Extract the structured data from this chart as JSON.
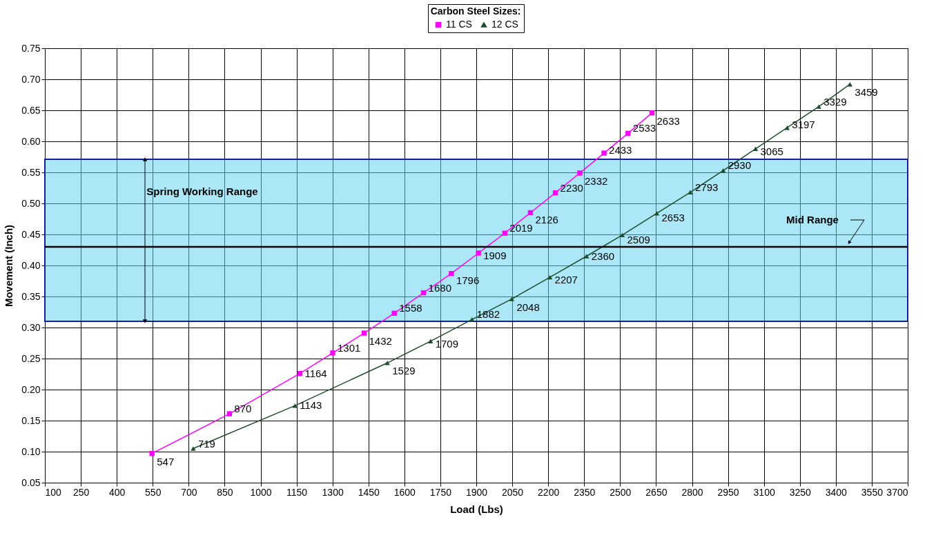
{
  "chart_data": {
    "type": "line",
    "legend_title": "Carbon Steel Sizes:",
    "xlabel": "Load (Lbs)",
    "ylabel": "Movement (Inch)",
    "xlim": [
      100,
      3700
    ],
    "xticks": [
      100,
      250,
      400,
      550,
      700,
      850,
      1000,
      1150,
      1300,
      1450,
      1600,
      1750,
      1900,
      2050,
      2200,
      2350,
      2500,
      2650,
      2800,
      2950,
      3100,
      3250,
      3400,
      3550,
      3700
    ],
    "ylim": [
      0.05,
      0.75
    ],
    "yticks": [
      {
        "value": 0.05,
        "label": "0.05"
      },
      {
        "value": 0.1,
        "label": "0.10"
      },
      {
        "value": 0.15,
        "label": "0.15"
      },
      {
        "value": 0.2,
        "label": "0.20"
      },
      {
        "value": 0.25,
        "label": "0.25"
      },
      {
        "value": 0.3,
        "label": "0.30"
      },
      {
        "value": 0.35,
        "label": "0.35"
      },
      {
        "value": 0.4,
        "label": "0.40"
      },
      {
        "value": 0.45,
        "label": "0.45"
      },
      {
        "value": 0.5,
        "label": "0.50"
      },
      {
        "value": 0.55,
        "label": "0.55"
      },
      {
        "value": 0.6,
        "label": "0.60"
      },
      {
        "value": 0.65,
        "label": "0.65"
      },
      {
        "value": 0.7,
        "label": "0.70"
      },
      {
        "value": 0.75,
        "label": "0.75"
      }
    ],
    "grid": true,
    "legend": "top",
    "series": [
      {
        "name": "11 CS",
        "color": "#ff00ff",
        "marker": "square",
        "x": [
          547,
          870,
          1164,
          1301,
          1432,
          1558,
          1680,
          1796,
          1909,
          2019,
          2126,
          2230,
          2332,
          2433,
          2533,
          2633
        ],
        "values": [
          0.097,
          0.161,
          0.226,
          0.259,
          0.291,
          0.323,
          0.356,
          0.387,
          0.42,
          0.452,
          0.485,
          0.517,
          0.549,
          0.581,
          0.613,
          0.646
        ]
      },
      {
        "name": "12 CS",
        "color": "#1e4d2b",
        "marker": "triangle",
        "x": [
          719,
          1143,
          1529,
          1709,
          1882,
          2048,
          2207,
          2360,
          2509,
          2653,
          2793,
          2930,
          3065,
          3197,
          3329,
          3459
        ],
        "values": [
          0.105,
          0.174,
          0.243,
          0.278,
          0.313,
          0.346,
          0.381,
          0.415,
          0.449,
          0.484,
          0.518,
          0.553,
          0.588,
          0.622,
          0.656,
          0.692
        ]
      }
    ],
    "annotations": [
      {
        "text": "547",
        "x": 547,
        "y": 0.097
      },
      {
        "text": "870",
        "x": 870,
        "y": 0.161
      },
      {
        "text": "1164",
        "x": 1164,
        "y": 0.226
      },
      {
        "text": "1301",
        "x": 1301,
        "y": 0.259
      },
      {
        "text": "1432",
        "x": 1432,
        "y": 0.291
      },
      {
        "text": "1558",
        "x": 1558,
        "y": 0.323
      },
      {
        "text": "1680",
        "x": 1680,
        "y": 0.356
      },
      {
        "text": "1796",
        "x": 1796,
        "y": 0.387
      },
      {
        "text": "1909",
        "x": 1909,
        "y": 0.42
      },
      {
        "text": "2019",
        "x": 2019,
        "y": 0.452
      },
      {
        "text": "2126",
        "x": 2126,
        "y": 0.485
      },
      {
        "text": "2230",
        "x": 2230,
        "y": 0.517
      },
      {
        "text": "2332",
        "x": 2332,
        "y": 0.549
      },
      {
        "text": "2433",
        "x": 2433,
        "y": 0.581
      },
      {
        "text": "2533",
        "x": 2533,
        "y": 0.613
      },
      {
        "text": "2633",
        "x": 2633,
        "y": 0.646
      },
      {
        "text": "719",
        "x": 719,
        "y": 0.105
      },
      {
        "text": "1143",
        "x": 1143,
        "y": 0.174
      },
      {
        "text": "1529",
        "x": 1529,
        "y": 0.243
      },
      {
        "text": "1709",
        "x": 1709,
        "y": 0.278
      },
      {
        "text": "1882",
        "x": 1882,
        "y": 0.313
      },
      {
        "text": "2048",
        "x": 2048,
        "y": 0.346
      },
      {
        "text": "2207",
        "x": 2207,
        "y": 0.381
      },
      {
        "text": "2360",
        "x": 2360,
        "y": 0.415
      },
      {
        "text": "2509",
        "x": 2509,
        "y": 0.449
      },
      {
        "text": "2653",
        "x": 2653,
        "y": 0.484
      },
      {
        "text": "2793",
        "x": 2793,
        "y": 0.518
      },
      {
        "text": "2930",
        "x": 2930,
        "y": 0.553
      },
      {
        "text": "3065",
        "x": 3065,
        "y": 0.588
      },
      {
        "text": "3197",
        "x": 3197,
        "y": 0.622
      },
      {
        "text": "3329",
        "x": 3329,
        "y": 0.656
      },
      {
        "text": "3459",
        "x": 3459,
        "y": 0.692
      }
    ],
    "bands": [
      {
        "axis": "y",
        "from": 0.31,
        "to": 0.571,
        "label": "Spring Working Range",
        "color": "#66d4f0"
      }
    ],
    "ref_lines": [
      {
        "axis": "y",
        "value": 0.43,
        "label": "Mid Range",
        "color": "#000000"
      }
    ]
  }
}
